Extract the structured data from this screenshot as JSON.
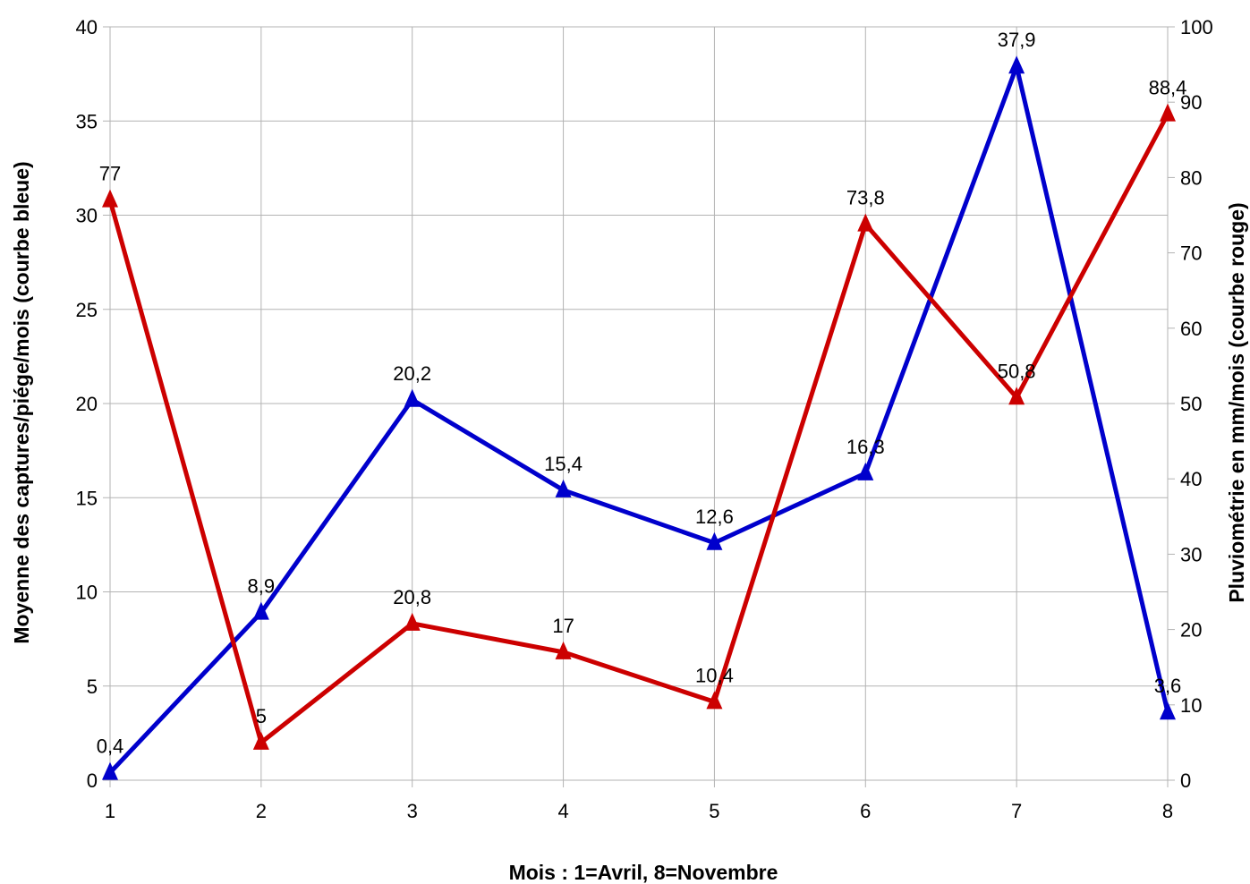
{
  "chart_data": {
    "type": "line",
    "title": "",
    "xlabel": "Mois : 1=Avril, 8=Novembre",
    "ylabel": "Moyenne des captures/piége/mois (courbe bleue)",
    "y2label": "Pluviométrie en mm/mois (courbe rouge)",
    "x": [
      1,
      2,
      3,
      4,
      5,
      6,
      7,
      8
    ],
    "xticks": [
      "1",
      "2",
      "3",
      "4",
      "5",
      "6",
      "7",
      "8"
    ],
    "ylim": [
      0,
      40
    ],
    "yticks": [
      "0",
      "5",
      "10",
      "15",
      "20",
      "25",
      "30",
      "35",
      "40"
    ],
    "y2lim": [
      0,
      100
    ],
    "y2ticks": [
      "0",
      "10",
      "20",
      "30",
      "40",
      "50",
      "60",
      "70",
      "80",
      "90",
      "100"
    ],
    "grid": true,
    "legend": "none",
    "series": [
      {
        "axis": "left",
        "color": "#0000CC",
        "marker": "triangle",
        "values": [
          0.4,
          8.9,
          20.2,
          15.4,
          12.6,
          16.3,
          37.9,
          3.6
        ],
        "labels": [
          "0,4",
          "8,9",
          "20,2",
          "15,4",
          "12,6",
          "16,3",
          "37,9",
          "3,6"
        ]
      },
      {
        "axis": "right",
        "color": "#CC0000",
        "marker": "triangle",
        "values": [
          77,
          5,
          20.8,
          17,
          10.4,
          73.8,
          50.8,
          88.4
        ],
        "labels": [
          "77",
          "5",
          "20,8",
          "17",
          "10,4",
          "73,8",
          "50,8",
          "88,4"
        ]
      }
    ]
  }
}
